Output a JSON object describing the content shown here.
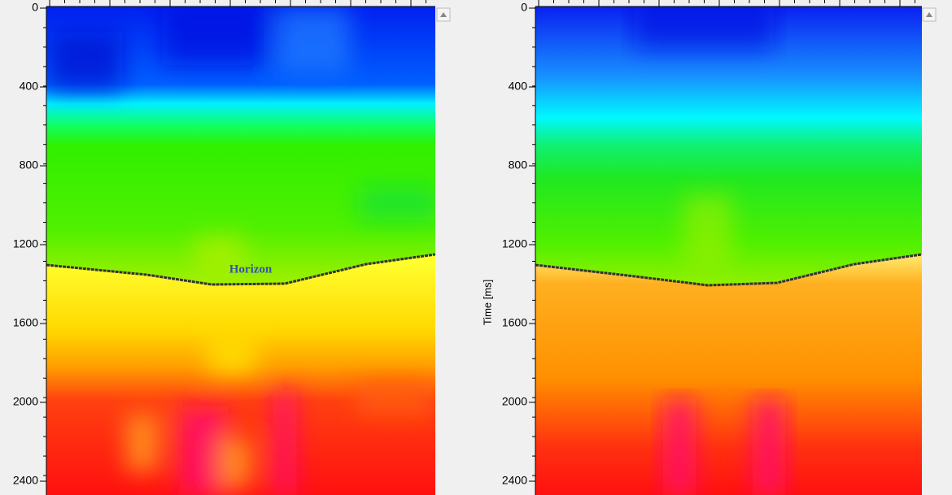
{
  "panels": [
    {
      "yticks": [
        0,
        400,
        800,
        1200,
        1600,
        2000,
        2400
      ],
      "ylim": [
        0,
        2470
      ],
      "annotation": "Horizon"
    },
    {
      "yticks": [
        0,
        400,
        800,
        1200,
        1600,
        2000,
        2400
      ],
      "ylim": [
        0,
        2470
      ],
      "axis_label": "Time [ms]"
    }
  ]
}
